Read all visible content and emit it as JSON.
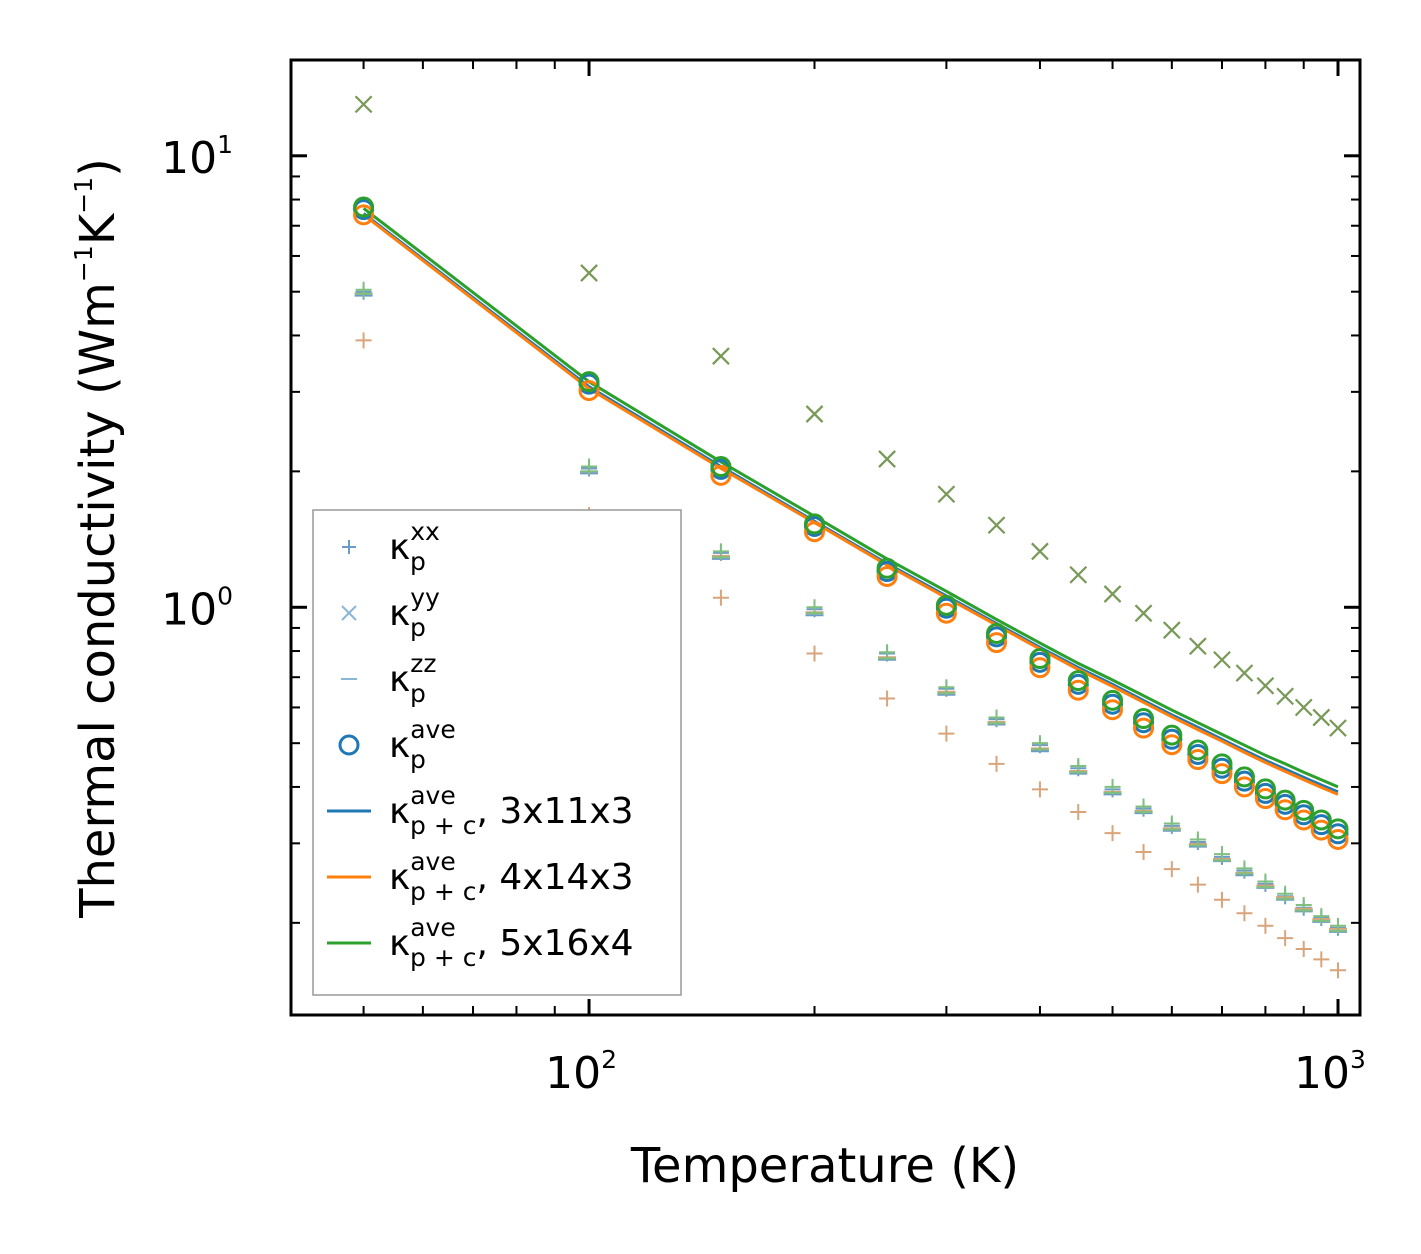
{
  "chart_data": {
    "type": "scatter+line",
    "xscale": "log",
    "yscale": "log",
    "xlabel": "Temperature (K)",
    "ylabel": {
      "prefix": "Thermal conductivity (Wm",
      "sup1": "−1",
      "mid": "K",
      "sup2": "−1",
      "suffix": ")"
    },
    "xlim": [
      40,
      1070
    ],
    "ylim": [
      0.125,
      16.3
    ],
    "xticks": [
      {
        "value": 100,
        "base": "10",
        "exp": "2"
      },
      {
        "value": 1000,
        "base": "10",
        "exp": "3"
      }
    ],
    "yticks": [
      {
        "value": 1,
        "base": "10",
        "exp": "0"
      },
      {
        "value": 10,
        "base": "10",
        "exp": "1"
      }
    ],
    "temperatures": [
      50,
      100,
      150,
      200,
      250,
      300,
      350,
      400,
      450,
      500,
      550,
      600,
      650,
      700,
      750,
      800,
      850,
      900,
      950,
      1000
    ],
    "series": [
      {
        "name": "3x11x3",
        "color": "#1f77b4",
        "kxx": [
          5.0,
          2.03,
          1.32,
          0.99,
          0.79,
          0.66,
          0.565,
          0.495,
          0.44,
          0.395,
          0.358,
          0.328,
          0.302,
          0.28,
          0.261,
          0.244,
          0.229,
          0.216,
          0.205,
          0.195
        ],
        "kyy": [
          13.0,
          5.5,
          3.6,
          2.68,
          2.13,
          1.78,
          1.52,
          1.33,
          1.18,
          1.07,
          0.97,
          0.89,
          0.82,
          0.765,
          0.715,
          0.67,
          0.635,
          0.6,
          0.57,
          0.54
        ],
        "kzz": [
          4.9,
          1.98,
          1.28,
          0.96,
          0.765,
          0.64,
          0.55,
          0.48,
          0.428,
          0.385,
          0.35,
          0.32,
          0.295,
          0.274,
          0.255,
          0.239,
          0.225,
          0.212,
          0.201,
          0.191
        ],
        "kave": [
          7.6,
          3.12,
          2.02,
          1.51,
          1.2,
          0.995,
          0.86,
          0.755,
          0.675,
          0.61,
          0.555,
          0.51,
          0.472,
          0.44,
          0.412,
          0.387,
          0.366,
          0.347,
          0.33,
          0.315
        ],
        "kpc": [
          7.45,
          3.08,
          2.05,
          1.55,
          1.25,
          1.06,
          0.92,
          0.815,
          0.735,
          0.675,
          0.622,
          0.578,
          0.542,
          0.51,
          0.482,
          0.458,
          0.438,
          0.42,
          0.404,
          0.39
        ]
      },
      {
        "name": "4x14x3",
        "color": "#ff7f0e",
        "kxx": [
          3.9,
          1.6,
          1.05,
          0.79,
          0.628,
          0.525,
          0.45,
          0.395,
          0.352,
          0.316,
          0.287,
          0.263,
          0.243,
          0.225,
          0.21,
          0.197,
          0.185,
          0.175,
          0.166,
          0.157
        ],
        "kyy": [
          13.0,
          5.5,
          3.6,
          2.68,
          2.13,
          1.78,
          1.52,
          1.33,
          1.18,
          1.07,
          0.97,
          0.89,
          0.82,
          0.765,
          0.715,
          0.67,
          0.635,
          0.6,
          0.57,
          0.54
        ],
        "kzz": [
          4.95,
          2.0,
          1.3,
          0.975,
          0.775,
          0.65,
          0.557,
          0.487,
          0.434,
          0.39,
          0.354,
          0.324,
          0.299,
          0.277,
          0.258,
          0.242,
          0.228,
          0.215,
          0.204,
          0.194
        ],
        "kave": [
          7.4,
          3.02,
          1.96,
          1.47,
          1.17,
          0.97,
          0.835,
          0.735,
          0.655,
          0.593,
          0.54,
          0.496,
          0.46,
          0.428,
          0.4,
          0.377,
          0.356,
          0.338,
          0.321,
          0.306
        ],
        "kpc": [
          7.4,
          3.05,
          2.03,
          1.54,
          1.24,
          1.05,
          0.913,
          0.808,
          0.728,
          0.668,
          0.616,
          0.572,
          0.536,
          0.505,
          0.477,
          0.453,
          0.433,
          0.415,
          0.399,
          0.385
        ]
      },
      {
        "name": "5x16x4",
        "color": "#2ca02c",
        "kxx": [
          5.05,
          2.05,
          1.33,
          1.0,
          0.795,
          0.665,
          0.57,
          0.5,
          0.445,
          0.4,
          0.362,
          0.332,
          0.306,
          0.284,
          0.264,
          0.247,
          0.232,
          0.219,
          0.207,
          0.197
        ],
        "kyy": [
          13.0,
          5.5,
          3.6,
          2.68,
          2.13,
          1.78,
          1.52,
          1.33,
          1.18,
          1.07,
          0.97,
          0.89,
          0.82,
          0.765,
          0.715,
          0.67,
          0.635,
          0.6,
          0.57,
          0.54
        ],
        "kzz": [
          4.95,
          2.0,
          1.29,
          0.97,
          0.77,
          0.645,
          0.553,
          0.484,
          0.431,
          0.388,
          0.352,
          0.322,
          0.297,
          0.275,
          0.257,
          0.24,
          0.226,
          0.213,
          0.202,
          0.192
        ],
        "kave": [
          7.7,
          3.16,
          2.05,
          1.53,
          1.22,
          1.01,
          0.875,
          0.77,
          0.688,
          0.622,
          0.567,
          0.521,
          0.483,
          0.45,
          0.421,
          0.396,
          0.374,
          0.355,
          0.338,
          0.323
        ],
        "kpc": [
          7.65,
          3.16,
          2.1,
          1.59,
          1.28,
          1.085,
          0.94,
          0.833,
          0.751,
          0.69,
          0.637,
          0.592,
          0.555,
          0.523,
          0.495,
          0.47,
          0.45,
          0.431,
          0.415,
          0.4
        ]
      }
    ],
    "legend": {
      "position": "lower-left",
      "entries": [
        {
          "marker": "plus",
          "color": "#6c9ac9",
          "base": "κ",
          "sup": "xx",
          "sub": "p",
          "label": ""
        },
        {
          "marker": "x",
          "color": "#8ab6d6",
          "base": "κ",
          "sup": "yy",
          "sub": "p",
          "label": ""
        },
        {
          "marker": "dash",
          "color": "#8ab6d6",
          "base": "κ",
          "sup": "zz",
          "sub": "p",
          "label": ""
        },
        {
          "marker": "circle",
          "color": "#1f77b4",
          "base": "κ",
          "sup": "ave",
          "sub": "p",
          "label": ""
        },
        {
          "marker": "line",
          "color": "#1f77b4",
          "base": "κ",
          "sup": "ave",
          "sub": "p + c",
          "label": ", 3x11x3"
        },
        {
          "marker": "line",
          "color": "#ff7f0e",
          "base": "κ",
          "sup": "ave",
          "sub": "p + c",
          "label": ", 4x14x3"
        },
        {
          "marker": "line",
          "color": "#2ca02c",
          "base": "κ",
          "sup": "ave",
          "sub": "p + c",
          "label": ", 5x16x4"
        }
      ]
    }
  }
}
